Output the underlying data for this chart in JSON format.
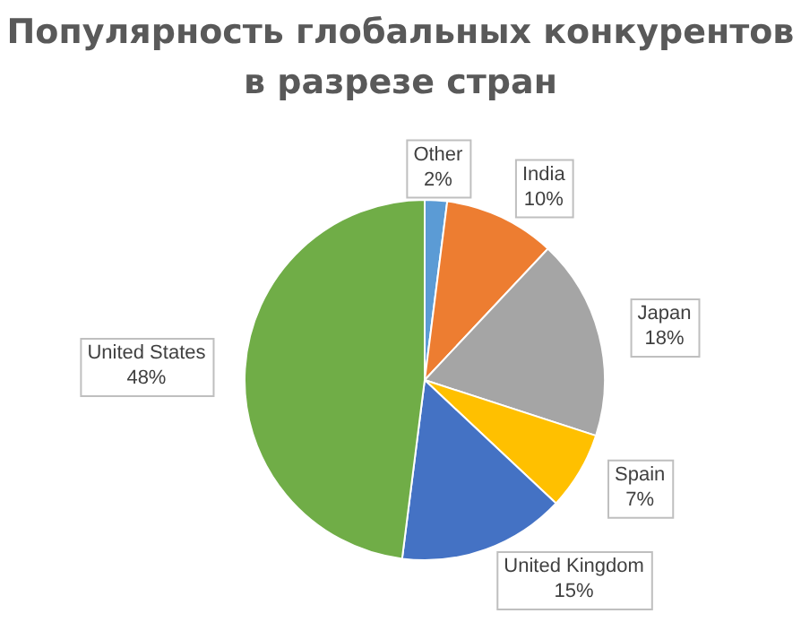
{
  "chart_data": {
    "type": "pie",
    "title": "Популярность глобальных конкурентов в разрезе стран",
    "categories": [
      "Other",
      "India",
      "Japan",
      "Spain",
      "United Kingdom",
      "United States"
    ],
    "values": [
      2,
      10,
      18,
      7,
      15,
      48
    ],
    "value_labels": [
      "2%",
      "10%",
      "18%",
      "7%",
      "15%",
      "48%"
    ],
    "colors": [
      "#5b9bd5",
      "#ed7d31",
      "#a5a5a5",
      "#ffc000",
      "#4472c4",
      "#70ad47"
    ],
    "legend": false
  }
}
